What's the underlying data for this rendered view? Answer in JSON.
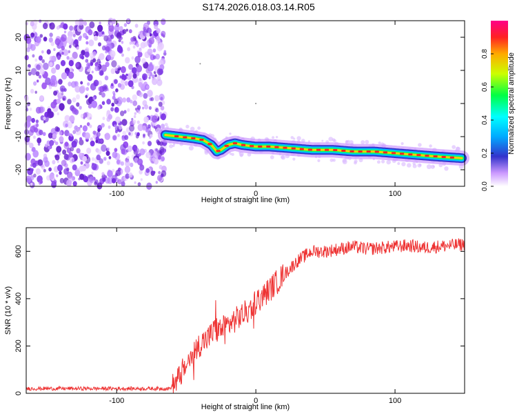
{
  "title": "S174.2026.018.03.14.R05",
  "colors": {
    "trace": "#ee3333",
    "axis": "#000000",
    "noise": "#7a33e6"
  },
  "chart_data": [
    {
      "type": "heatmap",
      "title": "S174.2026.018.03.14.R05",
      "xlabel": "Height of straight line (km)",
      "ylabel": "Frequency (Hz)",
      "xlim": [
        -165,
        150
      ],
      "ylim": [
        -25,
        25
      ],
      "xticks": [
        -100,
        0,
        100
      ],
      "yticks": [
        -20,
        -10,
        0,
        10,
        20
      ],
      "noise_x_range": [
        -165,
        -65
      ],
      "ridge": {
        "x": [
          -65,
          -55,
          -45,
          -38,
          -32,
          -28,
          -25,
          -20,
          -15,
          -10,
          0,
          10,
          25,
          40,
          55,
          70,
          85,
          100,
          115,
          130,
          148
        ],
        "y": [
          -9.5,
          -10.0,
          -10.5,
          -11.0,
          -12.5,
          -14.5,
          -14.0,
          -12.5,
          -12.0,
          -12.5,
          -13.0,
          -13.0,
          -13.5,
          -14.0,
          -14.0,
          -14.5,
          -14.5,
          -15.0,
          -15.5,
          -16.0,
          -16.5
        ]
      },
      "colorbar": {
        "label": "Normalized spectral amplitude",
        "ticks": [
          "0.0",
          "0.2",
          "0.4",
          "0.6",
          "0.8"
        ],
        "tick_values": [
          0.0,
          0.2,
          0.4,
          0.6,
          0.8
        ],
        "range": [
          0,
          1
        ]
      }
    },
    {
      "type": "line",
      "xlabel": "Height of straight line (km)",
      "ylabel": "SNR (10 * v/v)",
      "xlim": [
        -165,
        150
      ],
      "ylim": [
        0,
        700
      ],
      "xticks": [
        -100,
        0,
        100
      ],
      "yticks": [
        0,
        200,
        400,
        600
      ],
      "series": [
        {
          "name": "SNR",
          "x": [
            -165,
            -140,
            -110,
            -80,
            -62,
            -58,
            -50,
            -45,
            -40,
            -35,
            -30,
            -25,
            -20,
            -15,
            -10,
            -5,
            0,
            5,
            10,
            15,
            20,
            25,
            30,
            35,
            40,
            50,
            60,
            70,
            80,
            90,
            100,
            110,
            120,
            130,
            140,
            150
          ],
          "y": [
            20,
            20,
            20,
            20,
            20,
            40,
            120,
            170,
            210,
            230,
            260,
            270,
            290,
            310,
            330,
            350,
            390,
            410,
            440,
            470,
            500,
            530,
            560,
            580,
            600,
            600,
            610,
            620,
            610,
            615,
            620,
            625,
            615,
            620,
            625,
            630
          ]
        }
      ]
    }
  ]
}
